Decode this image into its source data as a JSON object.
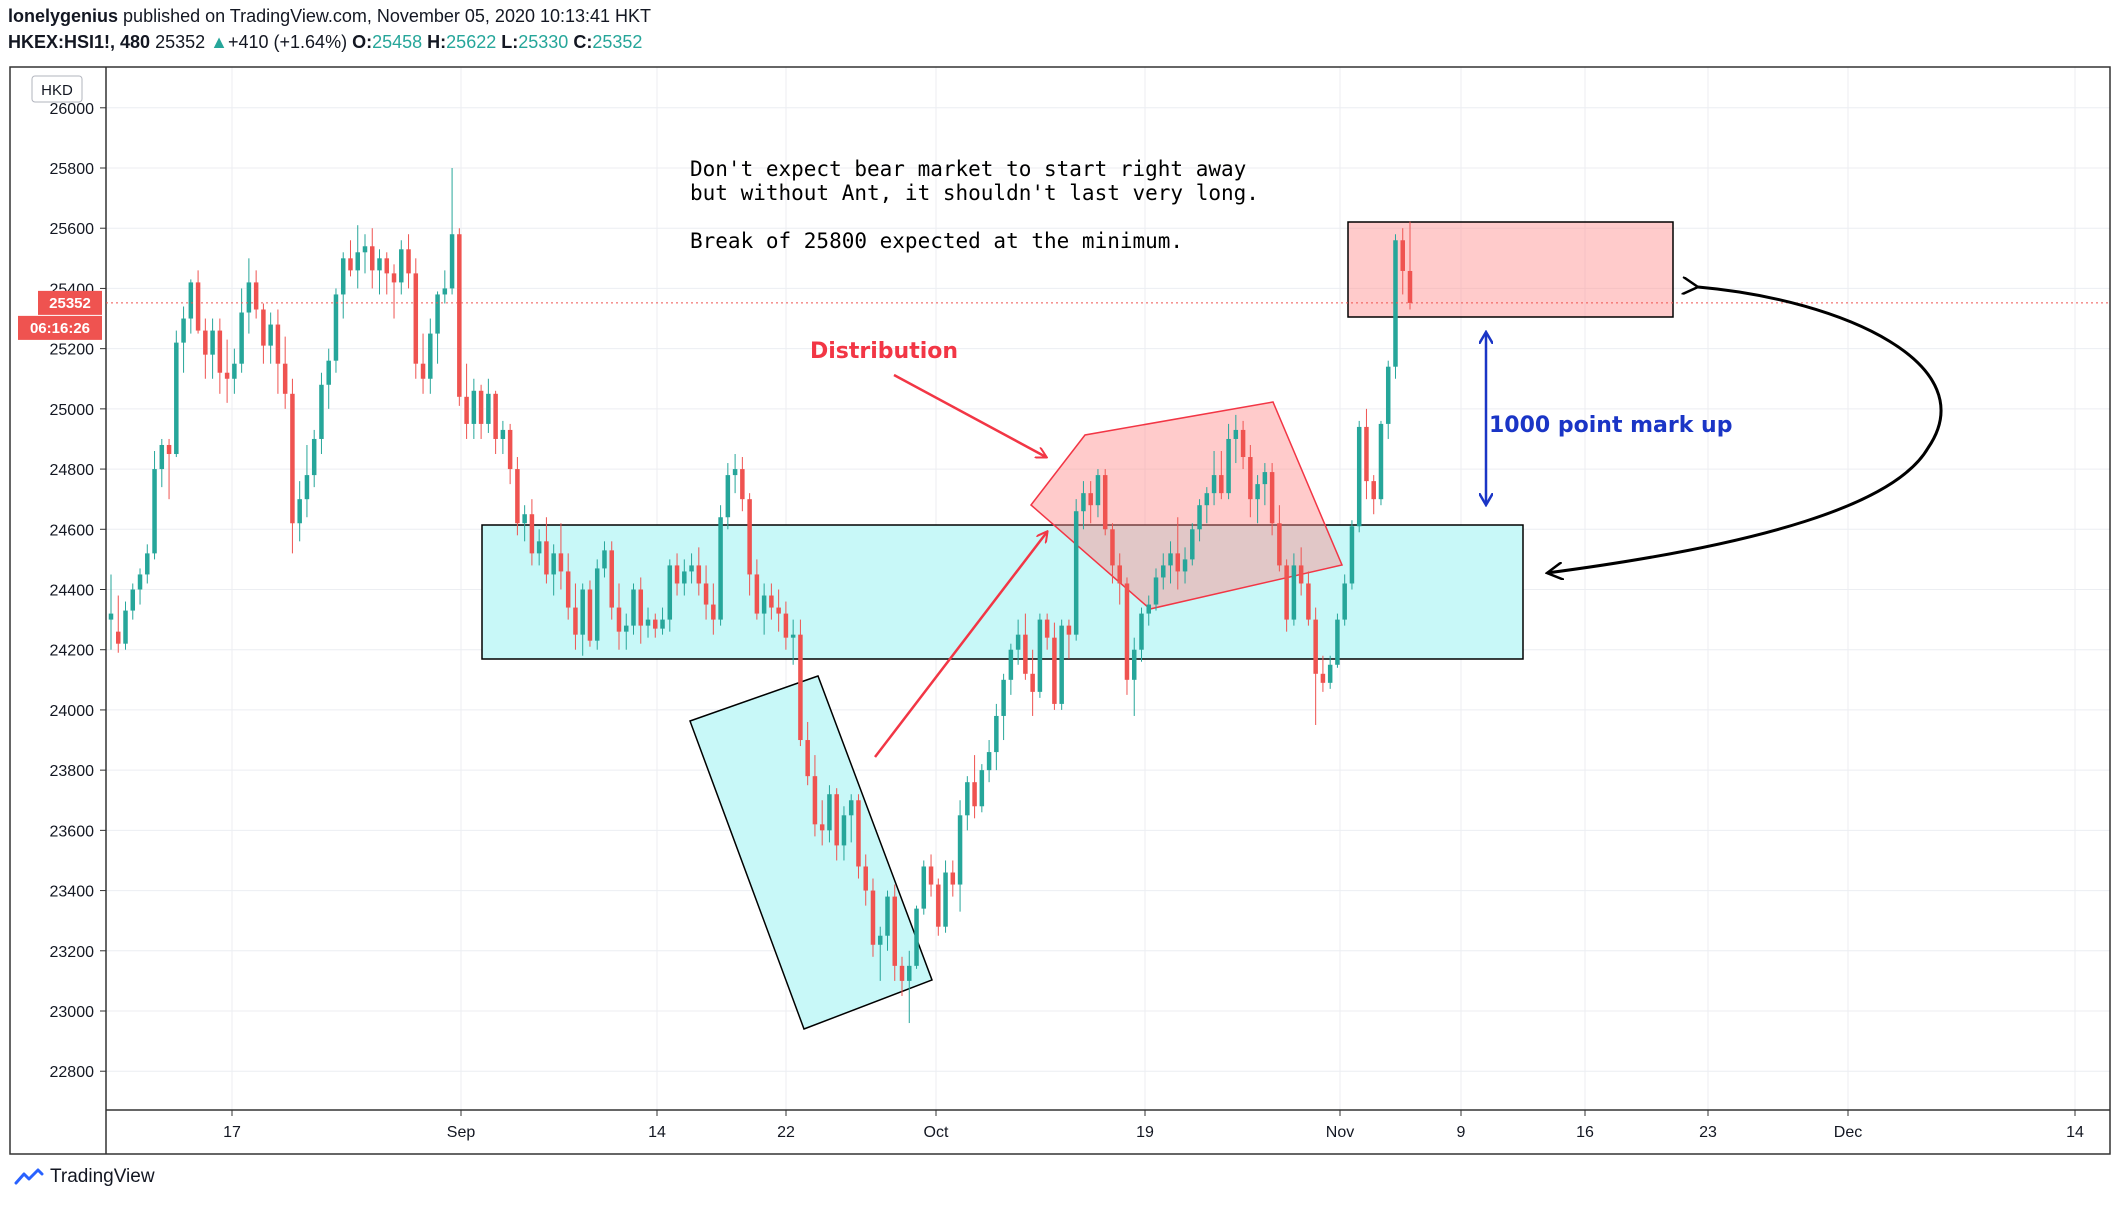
{
  "header": {
    "author": "lonelygenius",
    "published_text": "published on TradingView.com, November 05, 2020 10:13:41 HKT",
    "symbol": "HKEX:HSI1!, 480",
    "last": "25352",
    "change_arrow": "▲",
    "change": "+410 (+1.64%)",
    "o_label": "O:",
    "o_value": "25458",
    "h_label": "H:",
    "h_value": "25622",
    "l_label": "L:",
    "l_value": "25330",
    "c_label": "C:",
    "c_value": "25352"
  },
  "currency_label": "HKD",
  "price_tag": "25352",
  "countdown_tag": "06:16:26",
  "footer": {
    "brand": "TradingView"
  },
  "colors": {
    "up": "#26a69a",
    "down": "#ef5350",
    "cyan_zone": "#c8f8f8",
    "red_zone": "#ffcccc",
    "mark_up": "#1a35c6",
    "annot_red": "#f23645"
  },
  "annotations": {
    "note_line1": "Don't expect bear market to start right away",
    "note_line2": "but without Ant, it shouldn't last very long.",
    "note_line3": "Break of 25800 expected at the minimum.",
    "distribution": "Distribution",
    "mark_up": "1000 point mark up"
  },
  "chart_data": {
    "type": "candlestick",
    "title": "HKEX:HSI1!, 480",
    "ylim": [
      22650,
      26050
    ],
    "y_ticks": [
      22800,
      23000,
      23200,
      23400,
      23600,
      23800,
      24000,
      24200,
      24400,
      24600,
      24800,
      25000,
      25200,
      25400,
      25600,
      25800,
      26000
    ],
    "x_ticks": [
      "17",
      "Sep",
      "14",
      "22",
      "Oct",
      "19",
      "Nov",
      "9",
      "16",
      "23",
      "Dec",
      "14"
    ],
    "last_price": 25352,
    "ohlc": [
      [
        24300,
        24450,
        24200,
        24320
      ],
      [
        24260,
        24380,
        24190,
        24220
      ],
      [
        24220,
        24360,
        24200,
        24330
      ],
      [
        24330,
        24420,
        24300,
        24400
      ],
      [
        24400,
        24470,
        24350,
        24450
      ],
      [
        24450,
        24550,
        24420,
        24520
      ],
      [
        24520,
        24860,
        24500,
        24800
      ],
      [
        24800,
        24900,
        24740,
        24880
      ],
      [
        24880,
        24900,
        24700,
        24850
      ],
      [
        24850,
        25260,
        24840,
        25220
      ],
      [
        25220,
        25340,
        25120,
        25300
      ],
      [
        25300,
        25430,
        25250,
        25420
      ],
      [
        25420,
        25460,
        25250,
        25260
      ],
      [
        25260,
        25300,
        25100,
        25180
      ],
      [
        25180,
        25300,
        25100,
        25260
      ],
      [
        25260,
        25300,
        25050,
        25120
      ],
      [
        25120,
        25230,
        25020,
        25100
      ],
      [
        25100,
        25200,
        25050,
        25150
      ],
      [
        25150,
        25400,
        25120,
        25320
      ],
      [
        25320,
        25500,
        25250,
        25420
      ],
      [
        25420,
        25460,
        25300,
        25330
      ],
      [
        25330,
        25350,
        25150,
        25210
      ],
      [
        25210,
        25320,
        25150,
        25280
      ],
      [
        25280,
        25330,
        25050,
        25150
      ],
      [
        25150,
        25240,
        25000,
        25050
      ],
      [
        25050,
        25100,
        24520,
        24620
      ],
      [
        24620,
        24760,
        24560,
        24700
      ],
      [
        24700,
        24880,
        24640,
        24780
      ],
      [
        24780,
        24930,
        24740,
        24900
      ],
      [
        24900,
        25120,
        24850,
        25080
      ],
      [
        25080,
        25200,
        25000,
        25160
      ],
      [
        25160,
        25400,
        25120,
        25380
      ],
      [
        25380,
        25520,
        25300,
        25500
      ],
      [
        25500,
        25560,
        25440,
        25460
      ],
      [
        25460,
        25610,
        25400,
        25520
      ],
      [
        25520,
        25580,
        25450,
        25540
      ],
      [
        25540,
        25600,
        25400,
        25460
      ],
      [
        25460,
        25530,
        25380,
        25500
      ],
      [
        25500,
        25520,
        25380,
        25450
      ],
      [
        25450,
        25480,
        25300,
        25420
      ],
      [
        25420,
        25560,
        25380,
        25530
      ],
      [
        25530,
        25580,
        25400,
        25450
      ],
      [
        25450,
        25500,
        25100,
        25150
      ],
      [
        25150,
        25250,
        25050,
        25100
      ],
      [
        25100,
        25300,
        25050,
        25250
      ],
      [
        25250,
        25390,
        25150,
        25380
      ],
      [
        25380,
        25460,
        25350,
        25400
      ],
      [
        25400,
        25800,
        25380,
        25580
      ],
      [
        25580,
        25600,
        25010,
        25040
      ],
      [
        25040,
        25150,
        24900,
        24950
      ],
      [
        24950,
        25100,
        24900,
        25060
      ],
      [
        25060,
        25080,
        24900,
        24950
      ],
      [
        24950,
        25100,
        24920,
        25050
      ],
      [
        25050,
        25060,
        24850,
        24900
      ],
      [
        24900,
        24960,
        24850,
        24930
      ],
      [
        24930,
        24950,
        24750,
        24800
      ],
      [
        24800,
        24840,
        24580,
        24620
      ],
      [
        24620,
        24680,
        24560,
        24650
      ],
      [
        24650,
        24700,
        24480,
        24520
      ],
      [
        24520,
        24600,
        24480,
        24560
      ],
      [
        24560,
        24640,
        24420,
        24450
      ],
      [
        24450,
        24550,
        24380,
        24520
      ],
      [
        24520,
        24620,
        24400,
        24460
      ],
      [
        24460,
        24520,
        24300,
        24340
      ],
      [
        24340,
        24420,
        24200,
        24250
      ],
      [
        24250,
        24420,
        24180,
        24400
      ],
      [
        24400,
        24430,
        24210,
        24230
      ],
      [
        24230,
        24500,
        24200,
        24470
      ],
      [
        24470,
        24560,
        24440,
        24530
      ],
      [
        24530,
        24560,
        24300,
        24340
      ],
      [
        24340,
        24420,
        24200,
        24260
      ],
      [
        24260,
        24320,
        24200,
        24280
      ],
      [
        24280,
        24420,
        24250,
        24400
      ],
      [
        24400,
        24440,
        24220,
        24280
      ],
      [
        24280,
        24340,
        24240,
        24300
      ],
      [
        24300,
        24320,
        24240,
        24270
      ],
      [
        24270,
        24340,
        24250,
        24300
      ],
      [
        24300,
        24500,
        24260,
        24480
      ],
      [
        24480,
        24520,
        24380,
        24420
      ],
      [
        24420,
        24500,
        24380,
        24460
      ],
      [
        24460,
        24520,
        24420,
        24480
      ],
      [
        24480,
        24540,
        24380,
        24420
      ],
      [
        24420,
        24480,
        24300,
        24350
      ],
      [
        24350,
        24420,
        24250,
        24300
      ],
      [
        24300,
        24680,
        24280,
        24640
      ],
      [
        24640,
        24820,
        24600,
        24780
      ],
      [
        24780,
        24850,
        24720,
        24800
      ],
      [
        24800,
        24840,
        24660,
        24700
      ],
      [
        24700,
        24720,
        24380,
        24450
      ],
      [
        24450,
        24500,
        24300,
        24320
      ],
      [
        24320,
        24420,
        24250,
        24380
      ],
      [
        24380,
        24420,
        24300,
        24340
      ],
      [
        24340,
        24400,
        24260,
        24320
      ],
      [
        24320,
        24360,
        24200,
        24240
      ],
      [
        24240,
        24300,
        24150,
        24250
      ],
      [
        24250,
        24300,
        23880,
        23900
      ],
      [
        23900,
        23960,
        23750,
        23780
      ],
      [
        23780,
        23850,
        23580,
        23620
      ],
      [
        23620,
        23700,
        23550,
        23600
      ],
      [
        23600,
        23750,
        23560,
        23720
      ],
      [
        23720,
        23740,
        23500,
        23550
      ],
      [
        23550,
        23680,
        23500,
        23650
      ],
      [
        23650,
        23720,
        23560,
        23700
      ],
      [
        23700,
        23720,
        23440,
        23480
      ],
      [
        23480,
        23520,
        23350,
        23400
      ],
      [
        23400,
        23440,
        23180,
        23220
      ],
      [
        23220,
        23280,
        23100,
        23250
      ],
      [
        23250,
        23400,
        23200,
        23380
      ],
      [
        23380,
        23420,
        23100,
        23150
      ],
      [
        23150,
        23180,
        23050,
        23100
      ],
      [
        23100,
        23200,
        22960,
        23150
      ],
      [
        23150,
        23350,
        23140,
        23340
      ],
      [
        23340,
        23500,
        23320,
        23480
      ],
      [
        23480,
        23520,
        23380,
        23420
      ],
      [
        23420,
        23440,
        23250,
        23280
      ],
      [
        23280,
        23500,
        23260,
        23460
      ],
      [
        23460,
        23500,
        23380,
        23420
      ],
      [
        23420,
        23700,
        23330,
        23650
      ],
      [
        23650,
        23780,
        23600,
        23760
      ],
      [
        23760,
        23850,
        23640,
        23680
      ],
      [
        23680,
        23820,
        23660,
        23800
      ],
      [
        23800,
        23900,
        23760,
        23860
      ],
      [
        23860,
        24020,
        23800,
        23980
      ],
      [
        23980,
        24120,
        23900,
        24100
      ],
      [
        24100,
        24220,
        24050,
        24200
      ],
      [
        24200,
        24300,
        24150,
        24250
      ],
      [
        24250,
        24320,
        24100,
        24120
      ],
      [
        24120,
        24200,
        23980,
        24060
      ],
      [
        24060,
        24320,
        24040,
        24300
      ],
      [
        24300,
        24320,
        24200,
        24240
      ],
      [
        24240,
        24290,
        24000,
        24020
      ],
      [
        24020,
        24300,
        24000,
        24280
      ],
      [
        24280,
        24300,
        24170,
        24250
      ],
      [
        24250,
        24700,
        24230,
        24660
      ],
      [
        24660,
        24760,
        24600,
        24720
      ],
      [
        24720,
        24760,
        24620,
        24680
      ],
      [
        24680,
        24800,
        24640,
        24780
      ],
      [
        24780,
        24800,
        24580,
        24600
      ],
      [
        24600,
        24620,
        24420,
        24480
      ],
      [
        24480,
        24520,
        24350,
        24420
      ],
      [
        24420,
        24440,
        24050,
        24100
      ],
      [
        24100,
        24240,
        23980,
        24200
      ],
      [
        24200,
        24340,
        24160,
        24320
      ],
      [
        24320,
        24380,
        24280,
        24350
      ],
      [
        24350,
        24470,
        24330,
        24440
      ],
      [
        24440,
        24520,
        24400,
        24480
      ],
      [
        24480,
        24560,
        24420,
        24520
      ],
      [
        24520,
        24640,
        24400,
        24460
      ],
      [
        24460,
        24540,
        24420,
        24500
      ],
      [
        24500,
        24620,
        24480,
        24600
      ],
      [
        24600,
        24700,
        24560,
        24680
      ],
      [
        24680,
        24740,
        24620,
        24720
      ],
      [
        24720,
        24860,
        24680,
        24780
      ],
      [
        24780,
        24860,
        24700,
        24720
      ],
      [
        24720,
        24950,
        24700,
        24900
      ],
      [
        24900,
        24980,
        24820,
        24930
      ],
      [
        24930,
        24960,
        24800,
        24840
      ],
      [
        24840,
        24880,
        24640,
        24700
      ],
      [
        24700,
        24780,
        24620,
        24750
      ],
      [
        24750,
        24820,
        24680,
        24790
      ],
      [
        24790,
        24820,
        24580,
        24620
      ],
      [
        24620,
        24680,
        24460,
        24480
      ],
      [
        24480,
        24500,
        24260,
        24300
      ],
      [
        24300,
        24520,
        24280,
        24480
      ],
      [
        24480,
        24540,
        24380,
        24420
      ],
      [
        24420,
        24460,
        24280,
        24300
      ],
      [
        24300,
        24340,
        23950,
        24120
      ],
      [
        24120,
        24180,
        24060,
        24090
      ],
      [
        24090,
        24180,
        24070,
        24150
      ],
      [
        24150,
        24320,
        24140,
        24300
      ],
      [
        24300,
        24450,
        24280,
        24420
      ],
      [
        24420,
        24630,
        24400,
        24610
      ],
      [
        24610,
        24960,
        24590,
        24940
      ],
      [
        24940,
        25000,
        24700,
        24760
      ],
      [
        24760,
        24780,
        24650,
        24700
      ],
      [
        24700,
        24960,
        24680,
        24950
      ],
      [
        24950,
        25160,
        24900,
        25140
      ],
      [
        25140,
        25580,
        25100,
        25560
      ],
      [
        25560,
        25600,
        25380,
        25458
      ],
      [
        25458,
        25622,
        25330,
        25352
      ]
    ]
  }
}
